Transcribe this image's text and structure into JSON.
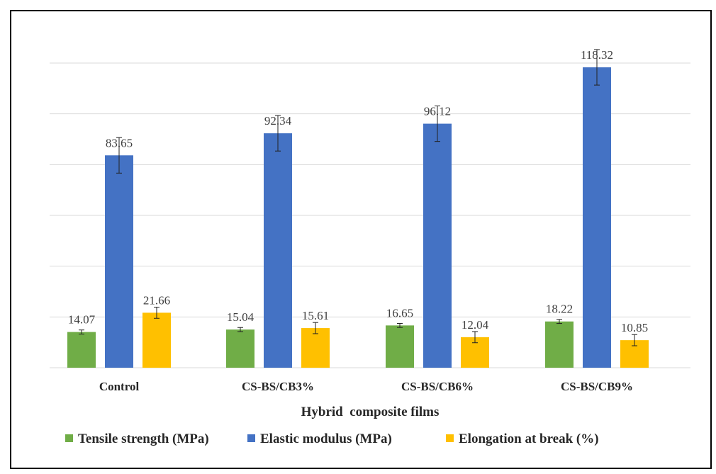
{
  "chart_data": {
    "type": "bar",
    "xlabel": "Hybrid  composite films",
    "ylabel": "",
    "categories": [
      "Control",
      "CS-BS/CB3%",
      "CS-BS/CB6%",
      "CS-BS/CB9%"
    ],
    "series": [
      {
        "name": "Tensile strength (MPa)",
        "color": "#70AD47",
        "values": [
          14.07,
          15.04,
          16.65,
          18.22
        ],
        "error": [
          0.8,
          0.8,
          0.8,
          0.8
        ]
      },
      {
        "name": "Elastic modulus (MPa)",
        "color": "#4472C4",
        "values": [
          83.65,
          92.34,
          96.12,
          118.32
        ],
        "error": [
          7,
          7,
          7,
          7
        ]
      },
      {
        "name": "Elongation at break (%)",
        "color": "#FFC000",
        "values": [
          21.66,
          15.61,
          12.04,
          10.85
        ],
        "error": [
          2.2,
          2.2,
          2.2,
          2.2
        ]
      }
    ],
    "ylim": [
      0,
      120
    ],
    "ytick_step": 20,
    "grid": true,
    "legend": "bottom"
  }
}
